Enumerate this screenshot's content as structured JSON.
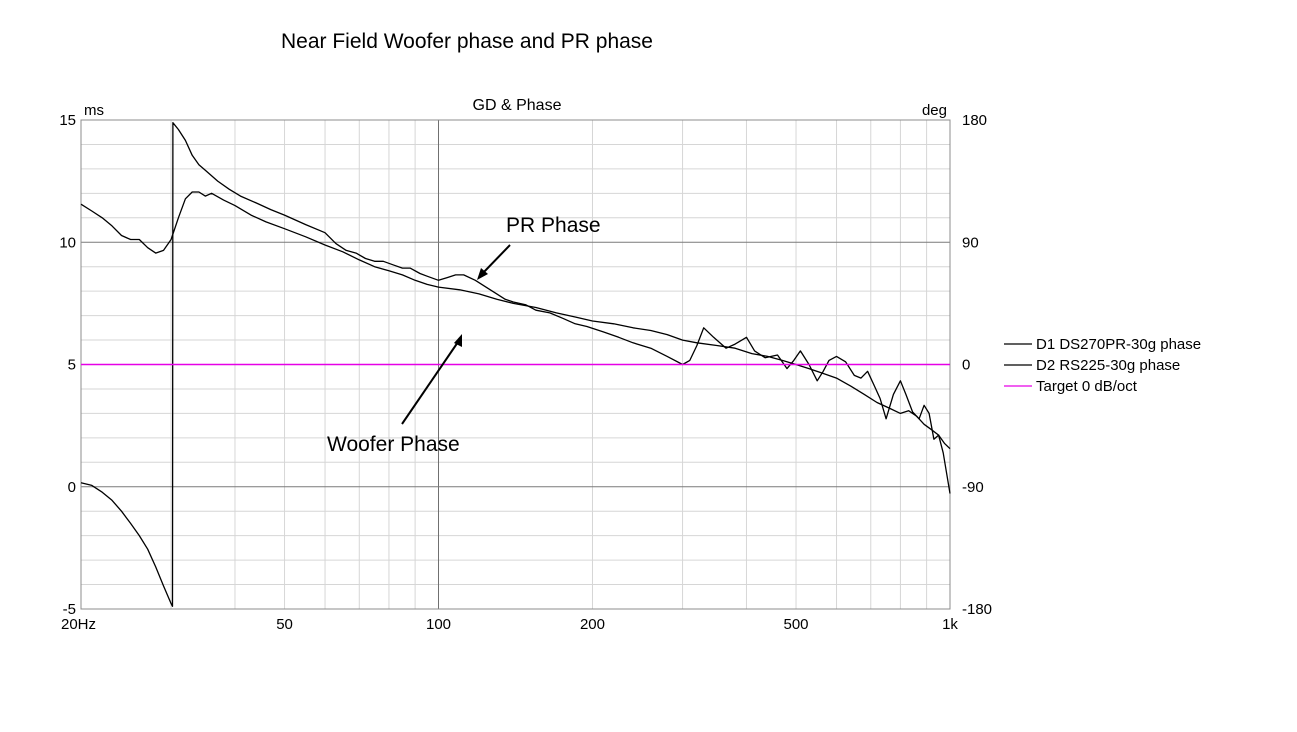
{
  "slide": {
    "title": "Near Field Woofer phase and PR phase"
  },
  "chart_data": {
    "type": "line",
    "title": "GD & Phase",
    "x_scale": "log",
    "xlim": [
      20,
      1000
    ],
    "x_ticks": [
      {
        "value": 20,
        "label": "20Hz"
      },
      {
        "value": 50,
        "label": "50"
      },
      {
        "value": 100,
        "label": "100"
      },
      {
        "value": 200,
        "label": "200"
      },
      {
        "value": 500,
        "label": "500"
      },
      {
        "value": 1000,
        "label": "1k"
      }
    ],
    "y_left": {
      "unit": "ms",
      "lim": [
        -5,
        15
      ],
      "ticks": [
        {
          "value": 15,
          "label": "15"
        },
        {
          "value": 10,
          "label": "10"
        },
        {
          "value": 5,
          "label": "5"
        },
        {
          "value": 0,
          "label": "0"
        },
        {
          "value": -5,
          "label": "-5"
        }
      ]
    },
    "y_right": {
      "unit": "deg",
      "lim": [
        -180,
        180
      ],
      "ticks": [
        {
          "value": 180,
          "label": "180"
        },
        {
          "value": 90,
          "label": "90"
        },
        {
          "value": 0,
          "label": "0"
        },
        {
          "value": -90,
          "label": "-90"
        },
        {
          "value": -180,
          "label": "-180"
        }
      ]
    },
    "grid": true,
    "legend_position": "right",
    "series": [
      {
        "name": "D1 DS270PR-30g phase",
        "color": "#000000",
        "points": [
          [
            20,
            -87
          ],
          [
            21,
            -89
          ],
          [
            22,
            -94
          ],
          [
            23,
            -100
          ],
          [
            24,
            -108
          ],
          [
            25,
            -117
          ],
          [
            26,
            -126
          ],
          [
            27,
            -136
          ],
          [
            28,
            -149
          ],
          [
            29,
            -163
          ],
          [
            30,
            -176
          ],
          [
            30.2,
            -178
          ],
          [
            30.25,
            178
          ],
          [
            31,
            173
          ],
          [
            32,
            165
          ],
          [
            33,
            154
          ],
          [
            34,
            147
          ],
          [
            35,
            143
          ],
          [
            37,
            135
          ],
          [
            39,
            129
          ],
          [
            41,
            124
          ],
          [
            44,
            119
          ],
          [
            47,
            114
          ],
          [
            50,
            110
          ],
          [
            55,
            103
          ],
          [
            60,
            97
          ],
          [
            63,
            89
          ],
          [
            66,
            84
          ],
          [
            69,
            82
          ],
          [
            72,
            78
          ],
          [
            75,
            76
          ],
          [
            78,
            76
          ],
          [
            82,
            73
          ],
          [
            85,
            71
          ],
          [
            88,
            71
          ],
          [
            92,
            67
          ],
          [
            95,
            65
          ],
          [
            100,
            62
          ],
          [
            104,
            64
          ],
          [
            108,
            66
          ],
          [
            112,
            66
          ],
          [
            118,
            62
          ],
          [
            125,
            56
          ],
          [
            130,
            52
          ],
          [
            135,
            48
          ],
          [
            140,
            46
          ],
          [
            148,
            44
          ],
          [
            155,
            40
          ],
          [
            165,
            38
          ],
          [
            175,
            34
          ],
          [
            185,
            30
          ],
          [
            195,
            28
          ],
          [
            210,
            24
          ],
          [
            225,
            20
          ],
          [
            240,
            16
          ],
          [
            260,
            12
          ],
          [
            280,
            6
          ],
          [
            300,
            0
          ],
          [
            310,
            3
          ],
          [
            320,
            14
          ],
          [
            330,
            27
          ],
          [
            345,
            20
          ],
          [
            365,
            12
          ],
          [
            380,
            15
          ],
          [
            400,
            20
          ],
          [
            415,
            10
          ],
          [
            435,
            5
          ],
          [
            460,
            7
          ],
          [
            480,
            -3
          ],
          [
            495,
            3
          ],
          [
            510,
            10
          ],
          [
            530,
            0
          ],
          [
            550,
            -12
          ],
          [
            565,
            -5
          ],
          [
            580,
            3
          ],
          [
            600,
            6
          ],
          [
            625,
            2
          ],
          [
            650,
            -8
          ],
          [
            670,
            -10
          ],
          [
            690,
            -5
          ],
          [
            710,
            -15
          ],
          [
            730,
            -25
          ],
          [
            750,
            -40
          ],
          [
            775,
            -22
          ],
          [
            800,
            -12
          ],
          [
            820,
            -22
          ],
          [
            845,
            -35
          ],
          [
            870,
            -40
          ],
          [
            890,
            -30
          ],
          [
            910,
            -36
          ],
          [
            930,
            -55
          ],
          [
            950,
            -52
          ],
          [
            970,
            -65
          ],
          [
            985,
            -80
          ],
          [
            1000,
            -95
          ]
        ]
      },
      {
        "name": "D2 RS225-30g phase",
        "color": "#000000",
        "points": [
          [
            20,
            118
          ],
          [
            21,
            113
          ],
          [
            22,
            108
          ],
          [
            23,
            102
          ],
          [
            24,
            95
          ],
          [
            25,
            92
          ],
          [
            26,
            92
          ],
          [
            27,
            86
          ],
          [
            28,
            82
          ],
          [
            29,
            84
          ],
          [
            30,
            92
          ],
          [
            31,
            108
          ],
          [
            32,
            122
          ],
          [
            33,
            127
          ],
          [
            34,
            127
          ],
          [
            35,
            124
          ],
          [
            36,
            126
          ],
          [
            38,
            121
          ],
          [
            40,
            117
          ],
          [
            43,
            110
          ],
          [
            46,
            105
          ],
          [
            50,
            100
          ],
          [
            55,
            94
          ],
          [
            60,
            88
          ],
          [
            65,
            83
          ],
          [
            70,
            77
          ],
          [
            75,
            72
          ],
          [
            80,
            69
          ],
          [
            85,
            66
          ],
          [
            90,
            62
          ],
          [
            95,
            59
          ],
          [
            100,
            57
          ],
          [
            110,
            55
          ],
          [
            120,
            52
          ],
          [
            130,
            48
          ],
          [
            140,
            45
          ],
          [
            155,
            42
          ],
          [
            170,
            38
          ],
          [
            185,
            35
          ],
          [
            200,
            32
          ],
          [
            220,
            30
          ],
          [
            240,
            27
          ],
          [
            260,
            25
          ],
          [
            280,
            22
          ],
          [
            300,
            18
          ],
          [
            320,
            16
          ],
          [
            350,
            14
          ],
          [
            380,
            12
          ],
          [
            410,
            8
          ],
          [
            440,
            6
          ],
          [
            470,
            3
          ],
          [
            500,
            0
          ],
          [
            530,
            -3
          ],
          [
            560,
            -6
          ],
          [
            600,
            -10
          ],
          [
            640,
            -16
          ],
          [
            680,
            -22
          ],
          [
            720,
            -28
          ],
          [
            760,
            -32
          ],
          [
            800,
            -36
          ],
          [
            830,
            -34
          ],
          [
            860,
            -38
          ],
          [
            890,
            -44
          ],
          [
            920,
            -48
          ],
          [
            950,
            -52
          ],
          [
            975,
            -58
          ],
          [
            1000,
            -62
          ]
        ]
      },
      {
        "name": "Target 0 dB/oct",
        "color": "#e600e6",
        "points": [
          [
            20,
            0
          ],
          [
            1000,
            0
          ]
        ]
      }
    ],
    "annotations": [
      {
        "text": "PR Phase",
        "arrow_to": [
          115,
          60
        ]
      },
      {
        "text": "Woofer Phase",
        "arrow_to": [
          108,
          53
        ]
      }
    ]
  }
}
